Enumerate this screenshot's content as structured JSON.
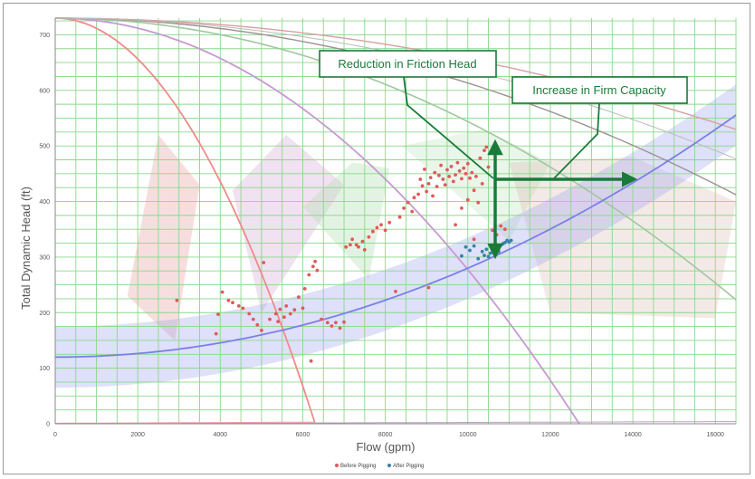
{
  "chart_data": {
    "type": "scatter",
    "xlabel": "Flow (gpm)",
    "ylabel": "Total Dynamic Head (ft)",
    "xlim": [
      0,
      16500
    ],
    "ylim": [
      0,
      730
    ],
    "x_ticks": [
      "0",
      "2000",
      "4000",
      "6000",
      "8000",
      "10000",
      "12000",
      "14000",
      "16000"
    ],
    "y_ticks": [
      "0",
      "100",
      "200",
      "300",
      "400",
      "500",
      "600",
      "700"
    ],
    "grid": true,
    "legend_position": "bottom-center",
    "colors": {
      "before": "#e05a5a",
      "after": "#3a7fa8",
      "annotation": "#1a7a3a",
      "grid": "#8ad88a"
    },
    "annotations": [
      {
        "id": "friction",
        "text": "Reduction in Friction Head"
      },
      {
        "id": "capacity",
        "text": "Increase in Firm Capacity"
      }
    ],
    "series": [
      {
        "name": "Before Pigging",
        "points": [
          [
            2950,
            222
          ],
          [
            3900,
            162
          ],
          [
            3950,
            197
          ],
          [
            4050,
            237
          ],
          [
            4200,
            222
          ],
          [
            4300,
            218
          ],
          [
            4450,
            212
          ],
          [
            4550,
            208
          ],
          [
            4700,
            198
          ],
          [
            4800,
            188
          ],
          [
            4900,
            178
          ],
          [
            5000,
            168
          ],
          [
            5050,
            290
          ],
          [
            5200,
            188
          ],
          [
            5350,
            198
          ],
          [
            5400,
            184
          ],
          [
            5450,
            206
          ],
          [
            5550,
            192
          ],
          [
            5600,
            212
          ],
          [
            5700,
            198
          ],
          [
            5800,
            205
          ],
          [
            5900,
            228
          ],
          [
            6000,
            208
          ],
          [
            6050,
            243
          ],
          [
            6150,
            268
          ],
          [
            6200,
            113
          ],
          [
            6250,
            283
          ],
          [
            6300,
            292
          ],
          [
            6350,
            276
          ],
          [
            6450,
            188
          ],
          [
            6600,
            182
          ],
          [
            6700,
            176
          ],
          [
            6800,
            182
          ],
          [
            6900,
            172
          ],
          [
            7000,
            183
          ],
          [
            7050,
            318
          ],
          [
            7150,
            322
          ],
          [
            7200,
            332
          ],
          [
            7300,
            322
          ],
          [
            7350,
            318
          ],
          [
            7450,
            328
          ],
          [
            7500,
            313
          ],
          [
            7600,
            336
          ],
          [
            7700,
            346
          ],
          [
            7800,
            353
          ],
          [
            7900,
            358
          ],
          [
            8000,
            348
          ],
          [
            8100,
            362
          ],
          [
            8250,
            238
          ],
          [
            8350,
            372
          ],
          [
            8450,
            388
          ],
          [
            8550,
            398
          ],
          [
            8650,
            382
          ],
          [
            8700,
            407
          ],
          [
            8800,
            413
          ],
          [
            8850,
            440
          ],
          [
            8900,
            428
          ],
          [
            8950,
            458
          ],
          [
            9000,
            418
          ],
          [
            9050,
            432
          ],
          [
            9100,
            443
          ],
          [
            9150,
            410
          ],
          [
            9200,
            452
          ],
          [
            9250,
            427
          ],
          [
            9300,
            447
          ],
          [
            9350,
            465
          ],
          [
            9400,
            440
          ],
          [
            9450,
            430
          ],
          [
            9500,
            457
          ],
          [
            9550,
            445
          ],
          [
            9600,
            463
          ],
          [
            9650,
            436
          ],
          [
            9700,
            448
          ],
          [
            9750,
            470
          ],
          [
            9800,
            455
          ],
          [
            9850,
            441
          ],
          [
            9900,
            460
          ],
          [
            9950,
            450
          ],
          [
            10000,
            468
          ],
          [
            10050,
            442
          ],
          [
            10100,
            452
          ],
          [
            10150,
            420
          ],
          [
            10200,
            445
          ],
          [
            10250,
            398
          ],
          [
            10300,
            478
          ],
          [
            10350,
            432
          ],
          [
            10400,
            492
          ],
          [
            10450,
            498
          ],
          [
            10500,
            462
          ],
          [
            10600,
            348
          ],
          [
            10700,
            340
          ],
          [
            10800,
            356
          ],
          [
            10900,
            350
          ],
          [
            9050,
            245
          ],
          [
            10000,
            403
          ],
          [
            9850,
            388
          ],
          [
            9700,
            358
          ],
          [
            10150,
            332
          ]
        ]
      },
      {
        "name": "After Pigging",
        "points": [
          [
            9850,
            302
          ],
          [
            9950,
            318
          ],
          [
            10050,
            312
          ],
          [
            10150,
            320
          ],
          [
            10250,
            297
          ],
          [
            10350,
            310
          ],
          [
            10400,
            303
          ],
          [
            10450,
            314
          ],
          [
            10500,
            301
          ],
          [
            10550,
            307
          ],
          [
            10600,
            313
          ],
          [
            10650,
            305
          ],
          [
            10700,
            318
          ],
          [
            10750,
            310
          ],
          [
            10800,
            321
          ],
          [
            10850,
            324
          ],
          [
            10900,
            326
          ],
          [
            10950,
            330
          ],
          [
            11000,
            327
          ],
          [
            11050,
            330
          ]
        ]
      }
    ]
  }
}
